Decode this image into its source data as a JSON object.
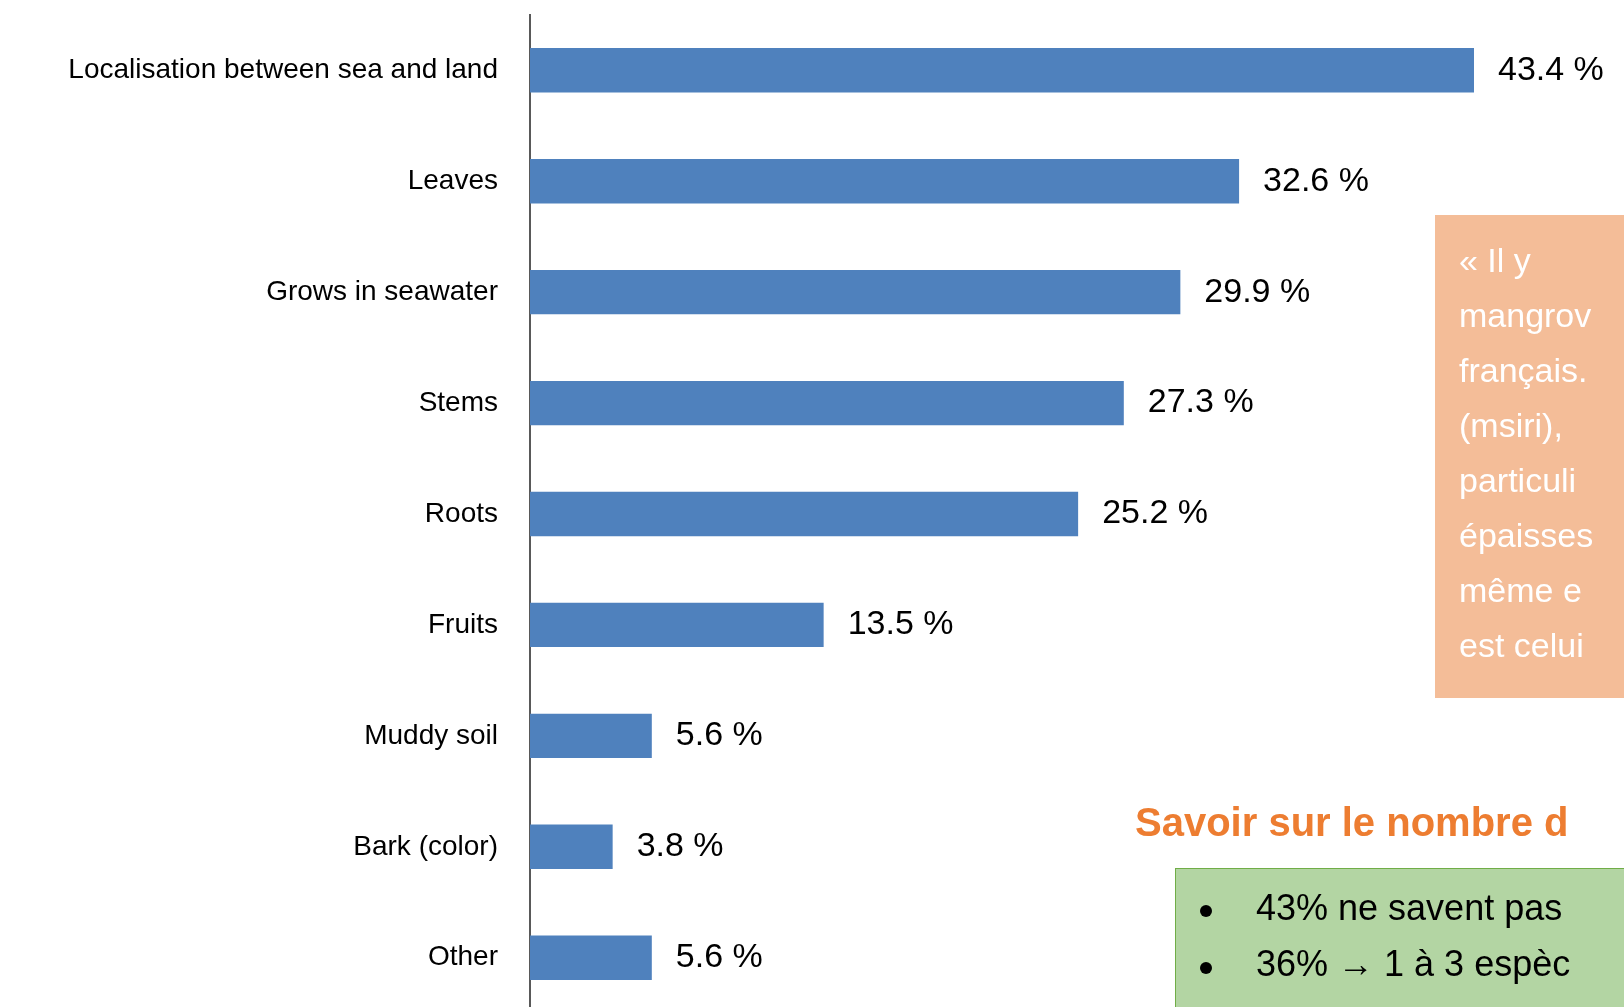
{
  "chart_data": {
    "type": "bar",
    "orientation": "horizontal",
    "categories": [
      "Localisation between sea and land",
      "Leaves",
      "Grows in seawater",
      "Stems",
      "Roots",
      "Fruits",
      "Muddy soil",
      "Bark (color)",
      "Other"
    ],
    "values": [
      43.4,
      32.6,
      29.9,
      27.3,
      25.2,
      13.5,
      5.6,
      3.8,
      5.6
    ],
    "value_labels": [
      "43.4 %",
      "32.6 %",
      "29.9 %",
      "27.3 %",
      "25.2 %",
      "13.5 %",
      "5.6 %",
      "3.8 %",
      "5.6 %"
    ],
    "color": "#4f81bd",
    "annotations": [
      "« Il y\nmangrov\nfrançais.\n(msiri),\nparticuli\népaisses\nmême e\nest celui",
      "Savoir sur le nombre d",
      "43% ne savent pas",
      "36% → 1 à 3 espèc"
    ]
  }
}
